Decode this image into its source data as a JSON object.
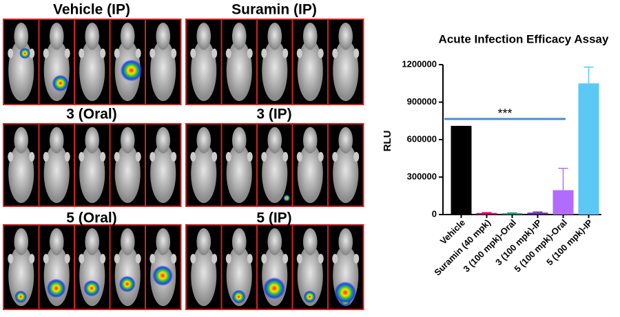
{
  "panels": [
    {
      "label": "Vehicle (IP)"
    },
    {
      "label": "Suramin (IP)"
    },
    {
      "label": "3 (Oral)"
    },
    {
      "label": "3 (IP)"
    },
    {
      "label": "5 (Oral)"
    },
    {
      "label": "5 (IP)"
    }
  ],
  "chart_data": {
    "type": "bar",
    "title": "Acute Infection Efficacy Assay",
    "y_label": "RLU",
    "categories": [
      "Vehicle",
      "Suramin (40 mpk)",
      "3 (100 mpk)-Oral",
      "3 (100 mpk)-IP",
      "5 (100 mpk)-Oral",
      "5 (100 mpk)-IP"
    ],
    "values": [
      710000,
      12000,
      10000,
      15000,
      195000,
      1050000
    ],
    "errors": [
      0,
      3000,
      3000,
      5000,
      175000,
      130000
    ],
    "colors": [
      "#000000",
      "#d4006a",
      "#1f8f7a",
      "#6a2a9c",
      "#b26bff",
      "#5cc8f5"
    ],
    "annotation": "***",
    "ylim": [
      0,
      1200000
    ],
    "yticks": [
      0,
      300000,
      600000,
      900000,
      1200000
    ]
  }
}
